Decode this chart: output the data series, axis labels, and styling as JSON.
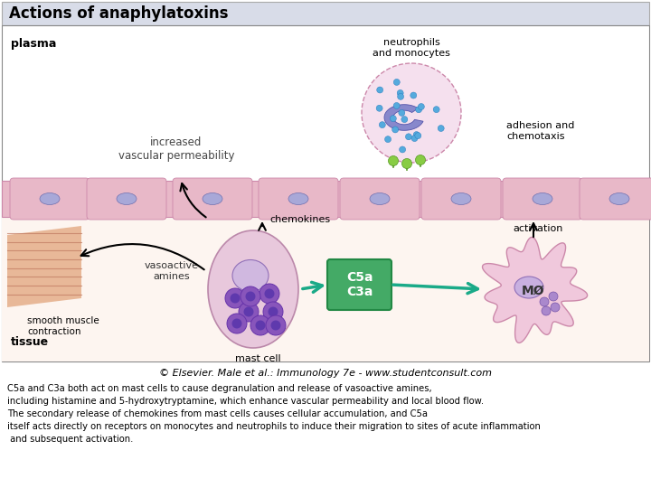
{
  "title": "Actions of anaphylatoxins",
  "title_bg": "#d8dce8",
  "main_bg": "#ffffff",
  "plasma_label": "plasma",
  "tissue_label": "tissue",
  "cell_layer_color": "#e8b8c8",
  "cell_nucleus_color": "#9898cc",
  "plasma_bg": "#ffffff",
  "tissue_bg": "#fdf5f0",
  "neutrophil_label": "neutrophils\nand monocytes",
  "adhesion_label": "adhesion and\nchemotaxis",
  "increased_vascular_label": "increased\nvascular permeability",
  "smooth_muscle_label": "smooth muscle\ncontraction",
  "chemokines_label": "chemokines",
  "vasoactive_label": "vasoactive\namines",
  "mast_cell_label": "mast cell",
  "activation_label": "activation",
  "c5a_c3a_label": "C5a\nC3a",
  "mo_label": "MØ",
  "copyright_label": "© Elsevier. Male et al.: Immunology 7e - www.studentconsult.com",
  "caption_lines": [
    "C5a and C3a both act on mast cells to cause degranulation and release of vasoactive amines,",
    "including histamine and 5-hydroxytryptamine, which enhance vascular permeability and local blood flow.",
    "The secondary release of chemokines from mast cells causes cellular accumulation, and C5a",
    "itself acts directly on receptors on monocytes and neutrophils to induce their migration to sites of acute inflammation",
    " and subsequent activation."
  ],
  "arrow_color": "#1aaa88",
  "box_color": "#44aa66",
  "muscle_color_light": "#e8b090",
  "muscle_color_dark": "#c07850",
  "green_mol_color": "#88cc44"
}
